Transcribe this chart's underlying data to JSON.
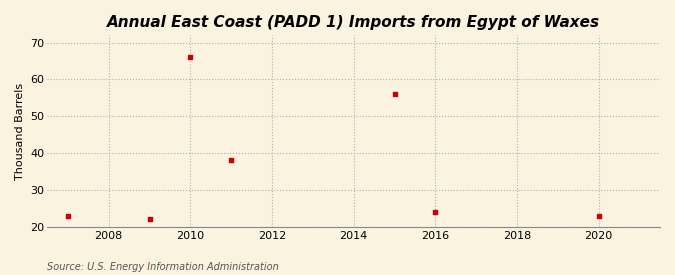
{
  "title": "Annual East Coast (PADD 1) Imports from Egypt of Waxes",
  "ylabel": "Thousand Barrels",
  "source": "Source: U.S. Energy Information Administration",
  "x_data": [
    2007,
    2009,
    2010,
    2011,
    2015,
    2016,
    2020
  ],
  "y_data": [
    23,
    22,
    66,
    38,
    56,
    24,
    23
  ],
  "xlim": [
    2006.5,
    2021.5
  ],
  "ylim": [
    20,
    72
  ],
  "yticks": [
    20,
    30,
    40,
    50,
    60,
    70
  ],
  "xticks": [
    2008,
    2010,
    2012,
    2014,
    2016,
    2018,
    2020
  ],
  "marker_color": "#cc0000",
  "marker": "s",
  "marker_size": 3.5,
  "bg_color": "#faf3e0",
  "grid_color": "#b0b0b0",
  "grid_linestyle": ":",
  "title_fontsize": 11,
  "label_fontsize": 8,
  "tick_fontsize": 8,
  "source_fontsize": 7,
  "source_color": "#555555"
}
